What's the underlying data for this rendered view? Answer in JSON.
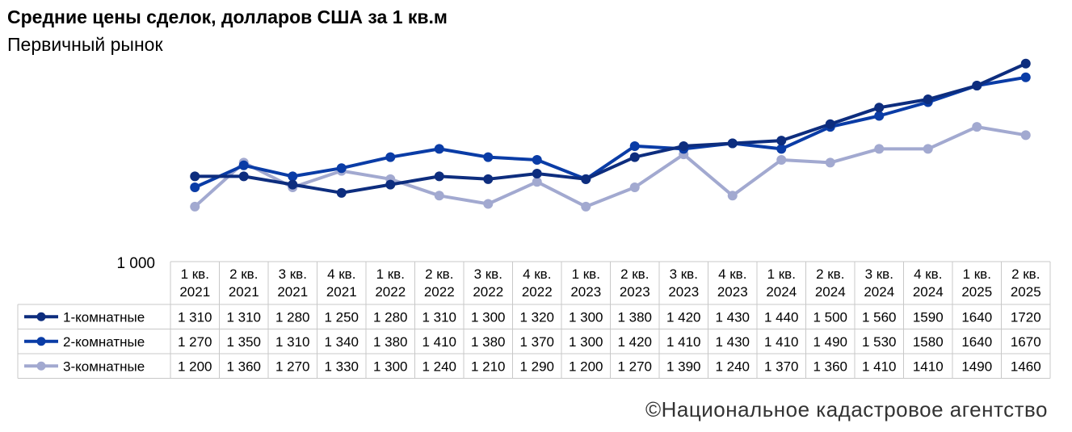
{
  "header": {
    "title": "Средние цены сделок, долларов США за 1 кв.м",
    "subtitle": "Первичный рынок"
  },
  "footer": {
    "source": "©Национальное кадастровое агентство"
  },
  "chart_data": {
    "type": "line",
    "title": "Средние цены сделок, долларов США за 1 кв.м",
    "subtitle": "Первичный рынок",
    "xlabel": "",
    "ylabel": "",
    "y_tick_label": "1 000",
    "ylim": [
      1000,
      1780
    ],
    "grid": false,
    "legend": "data-table",
    "categories": [
      [
        "1 кв.",
        "2021"
      ],
      [
        "2 кв.",
        "2021"
      ],
      [
        "3 кв.",
        "2021"
      ],
      [
        "4 кв.",
        "2021"
      ],
      [
        "1 кв.",
        "2022"
      ],
      [
        "2 кв.",
        "2022"
      ],
      [
        "3 кв.",
        "2022"
      ],
      [
        "4 кв.",
        "2022"
      ],
      [
        "1 кв.",
        "2023"
      ],
      [
        "2 кв.",
        "2023"
      ],
      [
        "3 кв.",
        "2023"
      ],
      [
        "4 кв.",
        "2023"
      ],
      [
        "1 кв.",
        "2024"
      ],
      [
        "2 кв.",
        "2024"
      ],
      [
        "3 кв.",
        "2024"
      ],
      [
        "4 кв.",
        "2024"
      ],
      [
        "1 кв.",
        "2025"
      ],
      [
        "2 кв.",
        "2025"
      ]
    ],
    "series": [
      {
        "name": "1-комнатные",
        "color": "#0d2d7e",
        "values": [
          1310,
          1310,
          1280,
          1250,
          1280,
          1310,
          1300,
          1320,
          1300,
          1380,
          1420,
          1430,
          1440,
          1500,
          1560,
          1590,
          1640,
          1720
        ],
        "labels": [
          "1 310",
          "1 310",
          "1 280",
          "1 250",
          "1 280",
          "1 310",
          "1 300",
          "1 320",
          "1 300",
          "1 380",
          "1 420",
          "1 430",
          "1 440",
          "1 500",
          "1 560",
          "1590",
          "1640",
          "1720"
        ]
      },
      {
        "name": "2-комнатные",
        "color": "#0a3ca6",
        "values": [
          1270,
          1350,
          1310,
          1340,
          1380,
          1410,
          1380,
          1370,
          1300,
          1420,
          1410,
          1430,
          1410,
          1490,
          1530,
          1580,
          1640,
          1670
        ],
        "labels": [
          "1 270",
          "1 350",
          "1 310",
          "1 340",
          "1 380",
          "1 410",
          "1 380",
          "1 370",
          "1 300",
          "1 420",
          "1 410",
          "1 430",
          "1 410",
          "1 490",
          "1 530",
          "1580",
          "1640",
          "1670"
        ]
      },
      {
        "name": "3-комнатные",
        "color": "#a2a9d0",
        "values": [
          1200,
          1360,
          1270,
          1330,
          1300,
          1240,
          1210,
          1290,
          1200,
          1270,
          1390,
          1240,
          1370,
          1360,
          1410,
          1410,
          1490,
          1460
        ],
        "labels": [
          "1 200",
          "1 360",
          "1 270",
          "1 330",
          "1 300",
          "1 240",
          "1 210",
          "1 290",
          "1 200",
          "1 270",
          "1 390",
          "1 240",
          "1 370",
          "1 360",
          "1 410",
          "1410",
          "1490",
          "1460"
        ]
      }
    ]
  }
}
